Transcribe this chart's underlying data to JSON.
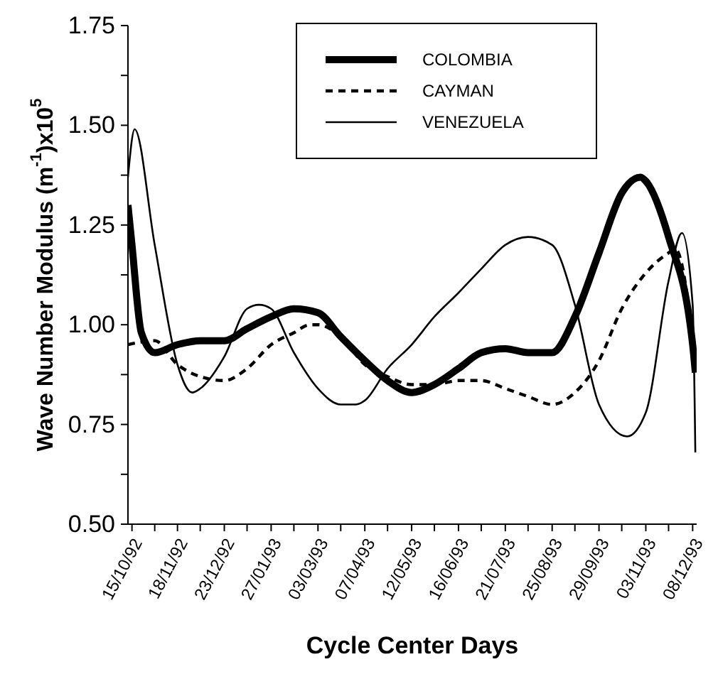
{
  "chart_data": {
    "type": "line",
    "xlabel": "Cycle Center Days",
    "ylabel": "Wave Number Modulus (m$^{-1}$)x10$^{5}$",
    "xlim": [
      "1992-10-12",
      "1993-12-11"
    ],
    "xticks": [
      {
        "value": "1992-10-15",
        "label": "15/10/92"
      },
      {
        "value": "1992-11-01",
        "label": null
      },
      {
        "value": "1992-11-18",
        "label": "18/11/92"
      },
      {
        "value": "1992-12-05",
        "label": null
      },
      {
        "value": "1992-12-23",
        "label": "23/12/92"
      },
      {
        "value": "1993-01-09",
        "label": null
      },
      {
        "value": "1993-01-27",
        "label": "27/01/93"
      },
      {
        "value": "1993-02-13",
        "label": null
      },
      {
        "value": "1993-03-03",
        "label": "03/03/93"
      },
      {
        "value": "1993-03-20",
        "label": null
      },
      {
        "value": "1993-04-07",
        "label": "07/04/93"
      },
      {
        "value": "1993-04-24",
        "label": null
      },
      {
        "value": "1993-05-12",
        "label": "12/05/93"
      },
      {
        "value": "1993-05-29",
        "label": null
      },
      {
        "value": "1993-06-16",
        "label": "16/06/93"
      },
      {
        "value": "1993-07-03",
        "label": null
      },
      {
        "value": "1993-07-21",
        "label": "21/07/93"
      },
      {
        "value": "1993-08-07",
        "label": null
      },
      {
        "value": "1993-08-25",
        "label": "25/08/93"
      },
      {
        "value": "1993-09-11",
        "label": null
      },
      {
        "value": "1993-09-29",
        "label": "29/09/93"
      },
      {
        "value": "1993-10-16",
        "label": null
      },
      {
        "value": "1993-11-03",
        "label": "03/11/93"
      },
      {
        "value": "1993-11-20",
        "label": null
      },
      {
        "value": "1993-12-08",
        "label": "08/12/93"
      }
    ],
    "ylim": [
      0.5,
      1.75
    ],
    "yticks": [
      {
        "value": 0.5,
        "label": "0.50"
      },
      {
        "value": 0.625,
        "label": null
      },
      {
        "value": 0.75,
        "label": "0.75"
      },
      {
        "value": 0.875,
        "label": null
      },
      {
        "value": 1.0,
        "label": "1.00"
      },
      {
        "value": 1.125,
        "label": null
      },
      {
        "value": 1.25,
        "label": "1.25"
      },
      {
        "value": 1.375,
        "label": null
      },
      {
        "value": 1.5,
        "label": "1.50"
      },
      {
        "value": 1.625,
        "label": null
      },
      {
        "value": 1.75,
        "label": "1.75"
      }
    ],
    "legend": "top",
    "marker": "none",
    "series": [
      {
        "name": "COLOMBIA",
        "color": "#000000",
        "line_style": "solid",
        "x": [
          "1992-10-12",
          "1992-10-15",
          "1992-10-22",
          "1992-11-01",
          "1992-11-18",
          "1992-12-05",
          "1992-12-23",
          "1993-01-09",
          "1993-01-27",
          "1993-02-13",
          "1993-03-03",
          "1993-03-20",
          "1993-04-07",
          "1993-04-24",
          "1993-05-12",
          "1993-05-29",
          "1993-06-16",
          "1993-07-03",
          "1993-07-21",
          "1993-08-07",
          "1993-08-25",
          "1993-09-11",
          "1993-09-29",
          "1993-10-16",
          "1993-10-30",
          "1993-11-03",
          "1993-11-20",
          "1993-12-08",
          "1993-12-10"
        ],
        "values": [
          1.3,
          1.2,
          0.98,
          0.93,
          0.95,
          0.96,
          0.96,
          0.99,
          1.02,
          1.04,
          1.03,
          0.97,
          0.91,
          0.86,
          0.83,
          0.85,
          0.89,
          0.93,
          0.94,
          0.93,
          0.93,
          1.02,
          1.18,
          1.33,
          1.37,
          1.36,
          1.22,
          0.95,
          0.88
        ]
      },
      {
        "name": "CAYMAN",
        "color": "#000000",
        "line_style": "dashed",
        "x": [
          "1992-10-12",
          "1992-11-01",
          "1992-11-18",
          "1992-12-05",
          "1992-12-23",
          "1993-01-09",
          "1993-01-27",
          "1993-02-13",
          "1993-02-25",
          "1993-03-03",
          "1993-03-20",
          "1993-04-07",
          "1993-04-24",
          "1993-05-12",
          "1993-05-29",
          "1993-06-16",
          "1993-07-03",
          "1993-07-21",
          "1993-08-07",
          "1993-08-25",
          "1993-09-11",
          "1993-09-29",
          "1993-10-16",
          "1993-11-03",
          "1993-11-20",
          "1993-11-25",
          "1993-11-30",
          "1993-12-08",
          "1993-12-10"
        ],
        "values": [
          0.95,
          0.96,
          0.9,
          0.87,
          0.86,
          0.89,
          0.95,
          0.98,
          1.0,
          1.0,
          0.97,
          0.9,
          0.87,
          0.85,
          0.85,
          0.86,
          0.86,
          0.84,
          0.82,
          0.8,
          0.83,
          0.91,
          1.04,
          1.13,
          1.18,
          1.19,
          1.15,
          0.95,
          0.88
        ]
      },
      {
        "name": "VENEZUELA",
        "color": "#000000",
        "line_style": "solid",
        "x": [
          "1992-10-12",
          "1992-10-17",
          "1992-11-01",
          "1992-11-18",
          "1992-11-29",
          "1992-12-05",
          "1992-12-23",
          "1993-01-09",
          "1993-01-18",
          "1993-01-27",
          "1993-02-13",
          "1993-03-03",
          "1993-03-20",
          "1993-03-31",
          "1993-04-07",
          "1993-04-24",
          "1993-05-12",
          "1993-05-29",
          "1993-06-16",
          "1993-07-03",
          "1993-07-21",
          "1993-08-07",
          "1993-08-25",
          "1993-09-11",
          "1993-09-29",
          "1993-10-20",
          "1993-11-03",
          "1993-11-20",
          "1993-11-30",
          "1993-12-08",
          "1993-12-10"
        ],
        "values": [
          1.37,
          1.49,
          1.2,
          0.9,
          0.83,
          0.84,
          0.92,
          1.04,
          1.05,
          1.04,
          0.93,
          0.84,
          0.8,
          0.8,
          0.81,
          0.89,
          0.95,
          1.02,
          1.08,
          1.14,
          1.2,
          1.22,
          1.2,
          1.05,
          0.8,
          0.72,
          0.78,
          1.11,
          1.23,
          1.05,
          0.68
        ]
      }
    ]
  }
}
